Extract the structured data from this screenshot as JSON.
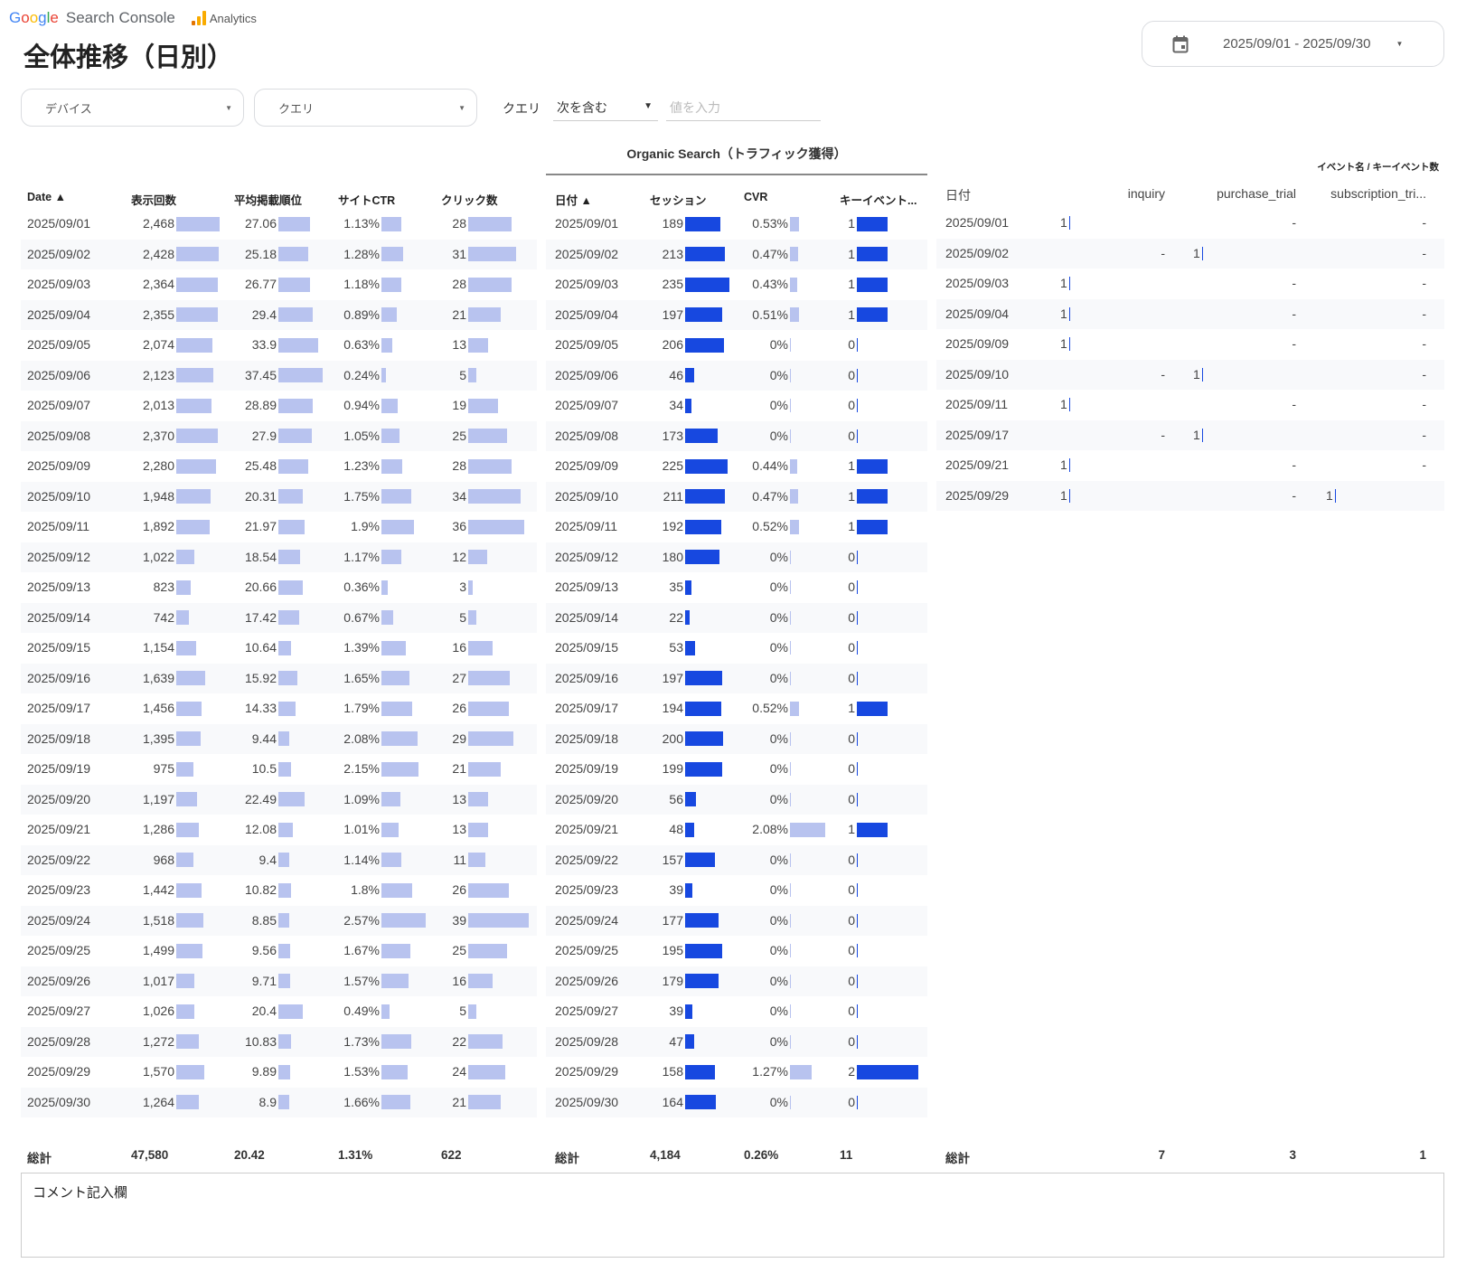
{
  "header": {
    "logo_google": "Google",
    "logo_search_console": "Search Console",
    "logo_analytics": "Analytics",
    "title": "全体推移（日別）",
    "date_range": "2025/09/01 - 2025/09/30",
    "icon": "calendar-icon"
  },
  "filters": {
    "device": "デバイス",
    "query": "クエリ",
    "query_label": "クエリ",
    "match_type": "次を含む",
    "value_placeholder": "値を入力"
  },
  "colors": {
    "light_bar": "#b8c3ef",
    "dark_bar": "#1748e0"
  },
  "gsc_table": {
    "headers": [
      "Date ▲",
      "表示回数",
      "平均掲載順位",
      "サイトCTR",
      "クリック数"
    ],
    "rows": [
      [
        "2025/09/01",
        "2,468",
        "27.06",
        "1.13%",
        "28"
      ],
      [
        "2025/09/02",
        "2,428",
        "25.18",
        "1.28%",
        "31"
      ],
      [
        "2025/09/03",
        "2,364",
        "26.77",
        "1.18%",
        "28"
      ],
      [
        "2025/09/04",
        "2,355",
        "29.4",
        "0.89%",
        "21"
      ],
      [
        "2025/09/05",
        "2,074",
        "33.9",
        "0.63%",
        "13"
      ],
      [
        "2025/09/06",
        "2,123",
        "37.45",
        "0.24%",
        "5"
      ],
      [
        "2025/09/07",
        "2,013",
        "28.89",
        "0.94%",
        "19"
      ],
      [
        "2025/09/08",
        "2,370",
        "27.9",
        "1.05%",
        "25"
      ],
      [
        "2025/09/09",
        "2,280",
        "25.48",
        "1.23%",
        "28"
      ],
      [
        "2025/09/10",
        "1,948",
        "20.31",
        "1.75%",
        "34"
      ],
      [
        "2025/09/11",
        "1,892",
        "21.97",
        "1.9%",
        "36"
      ],
      [
        "2025/09/12",
        "1,022",
        "18.54",
        "1.17%",
        "12"
      ],
      [
        "2025/09/13",
        "823",
        "20.66",
        "0.36%",
        "3"
      ],
      [
        "2025/09/14",
        "742",
        "17.42",
        "0.67%",
        "5"
      ],
      [
        "2025/09/15",
        "1,154",
        "10.64",
        "1.39%",
        "16"
      ],
      [
        "2025/09/16",
        "1,639",
        "15.92",
        "1.65%",
        "27"
      ],
      [
        "2025/09/17",
        "1,456",
        "14.33",
        "1.79%",
        "26"
      ],
      [
        "2025/09/18",
        "1,395",
        "9.44",
        "2.08%",
        "29"
      ],
      [
        "2025/09/19",
        "975",
        "10.5",
        "2.15%",
        "21"
      ],
      [
        "2025/09/20",
        "1,197",
        "22.49",
        "1.09%",
        "13"
      ],
      [
        "2025/09/21",
        "1,286",
        "12.08",
        "1.01%",
        "13"
      ],
      [
        "2025/09/22",
        "968",
        "9.4",
        "1.14%",
        "11"
      ],
      [
        "2025/09/23",
        "1,442",
        "10.82",
        "1.8%",
        "26"
      ],
      [
        "2025/09/24",
        "1,518",
        "8.85",
        "2.57%",
        "39"
      ],
      [
        "2025/09/25",
        "1,499",
        "9.56",
        "1.67%",
        "25"
      ],
      [
        "2025/09/26",
        "1,017",
        "9.71",
        "1.57%",
        "16"
      ],
      [
        "2025/09/27",
        "1,026",
        "20.4",
        "0.49%",
        "5"
      ],
      [
        "2025/09/28",
        "1,272",
        "10.83",
        "1.73%",
        "22"
      ],
      [
        "2025/09/29",
        "1,570",
        "9.89",
        "1.53%",
        "24"
      ],
      [
        "2025/09/30",
        "1,264",
        "8.9",
        "1.66%",
        "21"
      ]
    ],
    "totals": [
      "総計",
      "47,580",
      "20.42",
      "1.31%",
      "622"
    ]
  },
  "ga_table": {
    "title": "Organic Search（トラフィック獲得）",
    "headers": [
      "日付 ▲",
      "セッション",
      "CVR",
      "キーイベント..."
    ],
    "rows": [
      [
        "2025/09/01",
        "189",
        "0.53%",
        "1"
      ],
      [
        "2025/09/02",
        "213",
        "0.47%",
        "1"
      ],
      [
        "2025/09/03",
        "235",
        "0.43%",
        "1"
      ],
      [
        "2025/09/04",
        "197",
        "0.51%",
        "1"
      ],
      [
        "2025/09/05",
        "206",
        "0%",
        "0"
      ],
      [
        "2025/09/06",
        "46",
        "0%",
        "0"
      ],
      [
        "2025/09/07",
        "34",
        "0%",
        "0"
      ],
      [
        "2025/09/08",
        "173",
        "0%",
        "0"
      ],
      [
        "2025/09/09",
        "225",
        "0.44%",
        "1"
      ],
      [
        "2025/09/10",
        "211",
        "0.47%",
        "1"
      ],
      [
        "2025/09/11",
        "192",
        "0.52%",
        "1"
      ],
      [
        "2025/09/12",
        "180",
        "0%",
        "0"
      ],
      [
        "2025/09/13",
        "35",
        "0%",
        "0"
      ],
      [
        "2025/09/14",
        "22",
        "0%",
        "0"
      ],
      [
        "2025/09/15",
        "53",
        "0%",
        "0"
      ],
      [
        "2025/09/16",
        "197",
        "0%",
        "0"
      ],
      [
        "2025/09/17",
        "194",
        "0.52%",
        "1"
      ],
      [
        "2025/09/18",
        "200",
        "0%",
        "0"
      ],
      [
        "2025/09/19",
        "199",
        "0%",
        "0"
      ],
      [
        "2025/09/20",
        "56",
        "0%",
        "0"
      ],
      [
        "2025/09/21",
        "48",
        "2.08%",
        "1"
      ],
      [
        "2025/09/22",
        "157",
        "0%",
        "0"
      ],
      [
        "2025/09/23",
        "39",
        "0%",
        "0"
      ],
      [
        "2025/09/24",
        "177",
        "0%",
        "0"
      ],
      [
        "2025/09/25",
        "195",
        "0%",
        "0"
      ],
      [
        "2025/09/26",
        "179",
        "0%",
        "0"
      ],
      [
        "2025/09/27",
        "39",
        "0%",
        "0"
      ],
      [
        "2025/09/28",
        "47",
        "0%",
        "0"
      ],
      [
        "2025/09/29",
        "158",
        "1.27%",
        "2"
      ],
      [
        "2025/09/30",
        "164",
        "0%",
        "0"
      ]
    ],
    "totals": [
      "総計",
      "4,184",
      "0.26%",
      "11"
    ]
  },
  "event_table": {
    "group_header": "イベント名 / キーイベント数",
    "headers": [
      "日付",
      "inquiry",
      "purchase_trial",
      "subscription_tri..."
    ],
    "rows": [
      [
        "2025/09/01",
        "1",
        "-",
        "-"
      ],
      [
        "2025/09/02",
        "-",
        "1",
        "-"
      ],
      [
        "2025/09/03",
        "1",
        "-",
        "-"
      ],
      [
        "2025/09/04",
        "1",
        "-",
        "-"
      ],
      [
        "2025/09/09",
        "1",
        "-",
        "-"
      ],
      [
        "2025/09/10",
        "-",
        "1",
        "-"
      ],
      [
        "2025/09/11",
        "1",
        "-",
        "-"
      ],
      [
        "2025/09/17",
        "-",
        "1",
        "-"
      ],
      [
        "2025/09/21",
        "1",
        "-",
        "-"
      ],
      [
        "2025/09/29",
        "1",
        "-",
        "1"
      ]
    ],
    "totals": [
      "総計",
      "7",
      "3",
      "1"
    ]
  },
  "comment": {
    "label": "コメント記入欄"
  }
}
